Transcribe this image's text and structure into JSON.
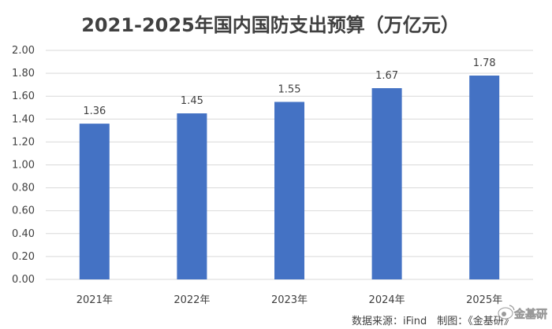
{
  "chart_data": {
    "type": "bar",
    "title": "2021-2025年国内国防支出预算（万亿元）",
    "categories": [
      "2021年",
      "2022年",
      "2023年",
      "2024年",
      "2025年"
    ],
    "values": [
      1.36,
      1.45,
      1.55,
      1.67,
      1.78
    ],
    "data_labels": [
      "1.36",
      "1.45",
      "1.55",
      "1.67",
      "1.78"
    ],
    "yticks": [
      "0.00",
      "0.20",
      "0.40",
      "0.60",
      "0.80",
      "1.00",
      "1.20",
      "1.40",
      "1.60",
      "1.80",
      "2.00"
    ],
    "ylim": [
      0,
      2.0
    ],
    "grid": true,
    "legend": "none",
    "bar_color": "#4472c4"
  },
  "source": "数据来源：iFind　制图：《金基研》",
  "watermark": {
    "text": "金基研",
    "icon": "weibo-logo-icon"
  }
}
